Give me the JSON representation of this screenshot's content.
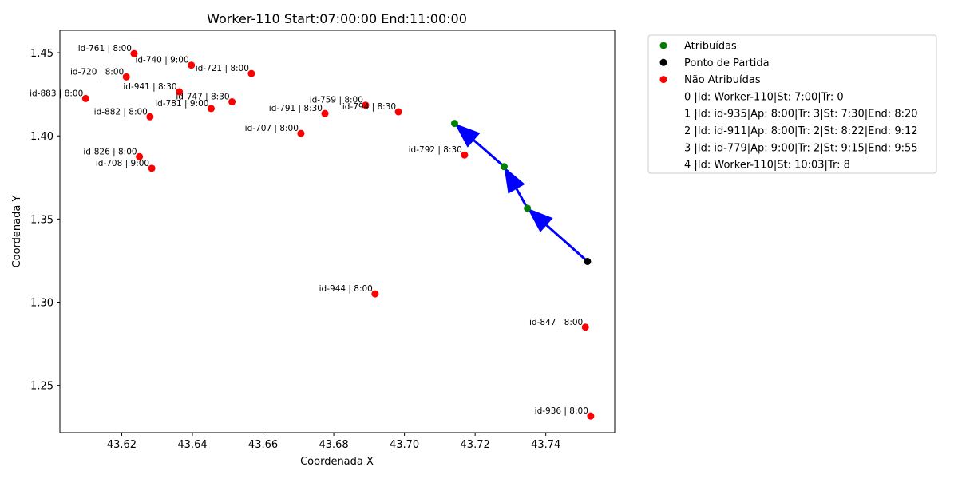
{
  "chart_data": {
    "type": "scatter",
    "title": "Worker-110 Start:07:00:00 End:11:00:00",
    "xlabel": "Coordenada X",
    "ylabel": "Coordenada Y",
    "xlim": [
      43.6025,
      43.7595
    ],
    "ylim": [
      1.2215,
      1.4635
    ],
    "xticks": [
      "43.62",
      "43.64",
      "43.66",
      "43.68",
      "43.70",
      "43.72",
      "43.74"
    ],
    "xtick_values": [
      43.62,
      43.64,
      43.66,
      43.68,
      43.7,
      43.72,
      43.74
    ],
    "yticks": [
      "1.25",
      "1.30",
      "1.35",
      "1.40",
      "1.45"
    ],
    "ytick_values": [
      1.25,
      1.3,
      1.35,
      1.4,
      1.45
    ],
    "grid": false,
    "legend_position": "outside-upper-right",
    "colors": {
      "assigned": "#008000",
      "start": "#000000",
      "unassigned": "#ff0000",
      "route": "#0000ff"
    },
    "series": [
      {
        "name": "Atribuídas",
        "color": "#008000",
        "points": [
          {
            "x": 43.7142,
            "y": 1.4075
          },
          {
            "x": 43.7282,
            "y": 1.3815
          },
          {
            "x": 43.7348,
            "y": 1.3565
          }
        ]
      },
      {
        "name": "Ponto de Partida",
        "color": "#000000",
        "points": [
          {
            "x": 43.7518,
            "y": 1.3245
          }
        ]
      },
      {
        "name": "Não Atribuídas",
        "color": "#ff0000",
        "points": [
          {
            "x": 43.6235,
            "y": 1.4495,
            "label": "id-761 | 8:00"
          },
          {
            "x": 43.6397,
            "y": 1.4425,
            "label": "id-740 | 9:00"
          },
          {
            "x": 43.6213,
            "y": 1.4355,
            "label": "id-720 | 8:00"
          },
          {
            "x": 43.6567,
            "y": 1.4375,
            "label": "id-721 | 8:00"
          },
          {
            "x": 43.6098,
            "y": 1.4225,
            "label": "id-883 | 8:00"
          },
          {
            "x": 43.6363,
            "y": 1.4265,
            "label": "id-941 | 8:30"
          },
          {
            "x": 43.6512,
            "y": 1.4205,
            "label": "id-747 | 8:30"
          },
          {
            "x": 43.6453,
            "y": 1.4165,
            "label": "id-781 | 9:00"
          },
          {
            "x": 43.628,
            "y": 1.4115,
            "label": "id-882 | 8:00"
          },
          {
            "x": 43.689,
            "y": 1.4185,
            "label": "id-759 | 8:00"
          },
          {
            "x": 43.6775,
            "y": 1.4135,
            "label": "id-791 | 8:30"
          },
          {
            "x": 43.6983,
            "y": 1.4145,
            "label": "id-794 | 8:30"
          },
          {
            "x": 43.6707,
            "y": 1.4015,
            "label": "id-707 | 8:00"
          },
          {
            "x": 43.717,
            "y": 1.3885,
            "label": "id-792 | 8:30"
          },
          {
            "x": 43.625,
            "y": 1.3875,
            "label": "id-826 | 8:00"
          },
          {
            "x": 43.6285,
            "y": 1.3805,
            "label": "id-708 | 9:00"
          },
          {
            "x": 43.6917,
            "y": 1.305,
            "label": "id-944 | 8:00"
          },
          {
            "x": 43.7512,
            "y": 1.285,
            "label": "id-847 | 8:00"
          },
          {
            "x": 43.7527,
            "y": 1.2315,
            "label": "id-936 | 8:00"
          }
        ]
      }
    ],
    "route": [
      {
        "from": [
          43.7518,
          1.3245
        ],
        "to": [
          43.7348,
          1.3565
        ]
      },
      {
        "from": [
          43.7348,
          1.3565
        ],
        "to": [
          43.7282,
          1.3815
        ]
      },
      {
        "from": [
          43.7282,
          1.3815
        ],
        "to": [
          43.7142,
          1.4075
        ]
      }
    ],
    "legend": {
      "entries": [
        {
          "label": "Atribuídas",
          "marker": "#008000"
        },
        {
          "label": "Ponto de Partida",
          "marker": "#000000"
        },
        {
          "label": "Não Atribuídas",
          "marker": "#ff0000"
        },
        {
          "label": "0 |Id: Worker-110|St: 7:00|Tr: 0",
          "marker": null
        },
        {
          "label": "1 |Id: id-935|Ap: 8:00|Tr: 3|St: 7:30|End: 8:20",
          "marker": null
        },
        {
          "label": "2 |Id: id-911|Ap: 8:00|Tr: 2|St: 8:22|End: 9:12",
          "marker": null
        },
        {
          "label": "3 |Id: id-779|Ap: 9:00|Tr: 2|St: 9:15|End: 9:55",
          "marker": null
        },
        {
          "label": "4 |Id: Worker-110|St: 10:03|Tr: 8",
          "marker": null
        }
      ]
    }
  }
}
